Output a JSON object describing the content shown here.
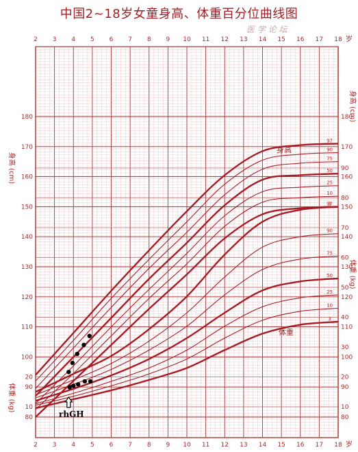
{
  "title": "中国2~18岁女童身高、体重百分位曲线图",
  "watermark": "医 学 论 坛",
  "chart_data": {
    "type": "line",
    "x": {
      "label": "岁",
      "min": 2,
      "max": 18,
      "ticks": [
        2,
        3,
        4,
        5,
        6,
        7,
        8,
        9,
        10,
        11,
        12,
        13,
        14,
        15,
        16,
        17,
        18
      ]
    },
    "height_axis": {
      "label": "身高 (cm)",
      "min": 80,
      "max": 180,
      "ticks": [
        80,
        90,
        100,
        110,
        120,
        130,
        140,
        150,
        160,
        170,
        180
      ]
    },
    "weight_axis": {
      "label": "体重 (kg)",
      "min": 5,
      "max": 95,
      "ticks": [
        10,
        20,
        30,
        40,
        50,
        60,
        70,
        80,
        90
      ]
    },
    "height_label": "身高",
    "weight_label": "体重",
    "height_series": [
      {
        "name": "97",
        "values": [
          [
            2,
            94
          ],
          [
            4,
            108
          ],
          [
            6,
            122
          ],
          [
            8,
            135.5
          ],
          [
            10,
            148.5
          ],
          [
            12,
            160.5
          ],
          [
            14,
            168.5
          ],
          [
            16,
            170.5
          ],
          [
            18,
            171
          ]
        ]
      },
      {
        "name": "90",
        "values": [
          [
            2,
            92
          ],
          [
            4,
            105.5
          ],
          [
            6,
            119.5
          ],
          [
            8,
            132.5
          ],
          [
            10,
            145
          ],
          [
            12,
            157.5
          ],
          [
            14,
            165.5
          ],
          [
            16,
            167.5
          ],
          [
            18,
            168
          ]
        ]
      },
      {
        "name": "75",
        "values": [
          [
            2,
            89.5
          ],
          [
            4,
            103
          ],
          [
            6,
            116.5
          ],
          [
            8,
            129.5
          ],
          [
            10,
            141.5
          ],
          [
            12,
            154
          ],
          [
            14,
            162.5
          ],
          [
            16,
            164.5
          ],
          [
            18,
            165
          ]
        ]
      },
      {
        "name": "50",
        "values": [
          [
            2,
            87
          ],
          [
            4,
            100
          ],
          [
            6,
            113
          ],
          [
            8,
            126
          ],
          [
            10,
            138
          ],
          [
            12,
            150.5
          ],
          [
            14,
            159
          ],
          [
            16,
            160.5
          ],
          [
            18,
            161
          ]
        ]
      },
      {
        "name": "25",
        "values": [
          [
            2,
            84.5
          ],
          [
            4,
            97
          ],
          [
            6,
            110
          ],
          [
            8,
            122.5
          ],
          [
            10,
            134.5
          ],
          [
            12,
            147
          ],
          [
            14,
            155
          ],
          [
            16,
            156.5
          ],
          [
            18,
            157
          ]
        ]
      },
      {
        "name": "10",
        "values": [
          [
            2,
            82.5
          ],
          [
            4,
            94.5
          ],
          [
            6,
            107
          ],
          [
            8,
            119.5
          ],
          [
            10,
            131
          ],
          [
            12,
            143.5
          ],
          [
            14,
            151.5
          ],
          [
            16,
            153
          ],
          [
            18,
            153.5
          ]
        ]
      },
      {
        "name": "3",
        "values": [
          [
            2,
            80
          ],
          [
            4,
            92
          ],
          [
            6,
            104
          ],
          [
            8,
            116
          ],
          [
            10,
            127.5
          ],
          [
            12,
            139.5
          ],
          [
            14,
            147.5
          ],
          [
            16,
            149.5
          ],
          [
            18,
            150
          ]
        ]
      }
    ],
    "weight_series": [
      {
        "name": "97",
        "values": [
          [
            2,
            15
          ],
          [
            4,
            21
          ],
          [
            6,
            27
          ],
          [
            8,
            36
          ],
          [
            10,
            47
          ],
          [
            12,
            61
          ],
          [
            14,
            72
          ],
          [
            16,
            76
          ],
          [
            18,
            77
          ]
        ]
      },
      {
        "name": "90",
        "values": [
          [
            2,
            14
          ],
          [
            4,
            19
          ],
          [
            6,
            24.5
          ],
          [
            8,
            32
          ],
          [
            10,
            41.5
          ],
          [
            12,
            53.5
          ],
          [
            14,
            63.5
          ],
          [
            16,
            67
          ],
          [
            18,
            68
          ]
        ]
      },
      {
        "name": "75",
        "values": [
          [
            2,
            13
          ],
          [
            4,
            17.5
          ],
          [
            6,
            22.5
          ],
          [
            8,
            29
          ],
          [
            10,
            37
          ],
          [
            12,
            47.5
          ],
          [
            14,
            56
          ],
          [
            16,
            59.5
          ],
          [
            18,
            60.5
          ]
        ]
      },
      {
        "name": "50",
        "values": [
          [
            2,
            12
          ],
          [
            4,
            16
          ],
          [
            6,
            20.5
          ],
          [
            8,
            26
          ],
          [
            10,
            33
          ],
          [
            12,
            41.5
          ],
          [
            14,
            49
          ],
          [
            16,
            52
          ],
          [
            18,
            53
          ]
        ]
      },
      {
        "name": "25",
        "values": [
          [
            2,
            11
          ],
          [
            4,
            14.5
          ],
          [
            6,
            18.5
          ],
          [
            8,
            23
          ],
          [
            10,
            29
          ],
          [
            12,
            37
          ],
          [
            14,
            43.5
          ],
          [
            16,
            46.5
          ],
          [
            18,
            47.5
          ]
        ]
      },
      {
        "name": "10",
        "values": [
          [
            2,
            10.5
          ],
          [
            4,
            13.5
          ],
          [
            6,
            17
          ],
          [
            8,
            21
          ],
          [
            10,
            26
          ],
          [
            12,
            33
          ],
          [
            14,
            39
          ],
          [
            16,
            42
          ],
          [
            18,
            43
          ]
        ]
      },
      {
        "name": "3",
        "values": [
          [
            2,
            9.5
          ],
          [
            4,
            12.5
          ],
          [
            6,
            15.5
          ],
          [
            8,
            19
          ],
          [
            10,
            23
          ],
          [
            12,
            29
          ],
          [
            14,
            34.5
          ],
          [
            16,
            37.5
          ],
          [
            18,
            38.5
          ]
        ]
      }
    ],
    "height_points": [
      [
        3.75,
        95
      ],
      [
        3.95,
        98
      ],
      [
        4.2,
        101
      ],
      [
        4.55,
        104
      ],
      [
        4.85,
        107
      ]
    ],
    "weight_points": [
      [
        3.8,
        16.5
      ],
      [
        4.0,
        17
      ],
      [
        4.25,
        17.5
      ],
      [
        4.6,
        18.5
      ],
      [
        4.9,
        18.5
      ]
    ],
    "annotation": "rhGH",
    "colors": {
      "major": "#a52a2a",
      "curve": "#a51c24",
      "grid": "#e3b3b8",
      "points": "#000000"
    }
  }
}
